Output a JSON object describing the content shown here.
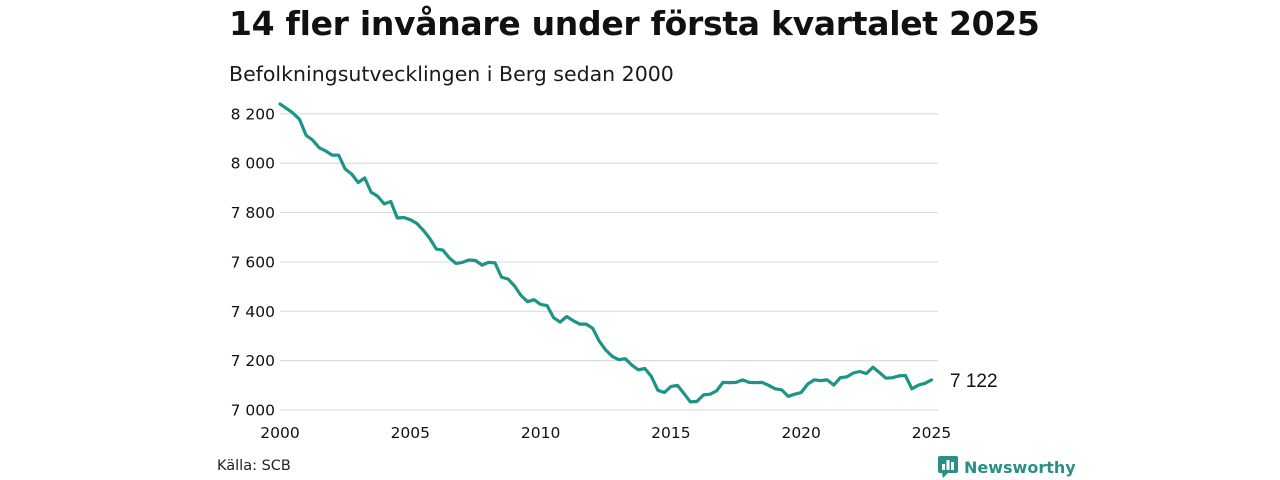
{
  "header": {
    "title": "14 fler invånare under första kvartalet 2025",
    "subtitle": "Befolkningsutvecklingen i Berg sedan 2000"
  },
  "footer": {
    "source": "Källa: SCB",
    "brand": "Newsworthy",
    "brand_icon": "newsworthy-logo-icon"
  },
  "colors": {
    "line": "#1c9486",
    "grid": "#dddddd",
    "brand": "#2a8f86"
  },
  "chart_data": {
    "type": "line",
    "title": "14 fler invånare under första kvartalet 2025",
    "subtitle": "Befolkningsutvecklingen i Berg sedan 2000",
    "xlabel": "",
    "ylabel": "",
    "x_ticks": [
      2000,
      2005,
      2010,
      2015,
      2020,
      2025
    ],
    "x_tick_labels": [
      "2000",
      "2005",
      "2010",
      "2015",
      "2020",
      "2025"
    ],
    "y_ticks": [
      7000,
      7200,
      7400,
      7600,
      7800,
      8000,
      8200
    ],
    "y_tick_labels": [
      "7 000",
      "7 200",
      "7 400",
      "7 600",
      "7 800",
      "8 000",
      "8 200"
    ],
    "xlim": [
      2000,
      2025.25
    ],
    "ylim": [
      7000,
      8240
    ],
    "grid": "horizontal",
    "end_label": "7 122",
    "series": [
      {
        "frequency": "quarterly",
        "start": 2000.0,
        "step": 0.25,
        "values": [
          8240,
          8222,
          8203,
          8178,
          8113,
          8094,
          8063,
          8050,
          8033,
          8033,
          7977,
          7956,
          7922,
          7940,
          7882,
          7866,
          7835,
          7845,
          7778,
          7780,
          7771,
          7756,
          7728,
          7695,
          7652,
          7648,
          7616,
          7594,
          7598,
          7608,
          7606,
          7587,
          7598,
          7596,
          7538,
          7531,
          7503,
          7464,
          7439,
          7447,
          7428,
          7423,
          7374,
          7356,
          7379,
          7362,
          7348,
          7348,
          7331,
          7279,
          7243,
          7217,
          7204,
          7208,
          7182,
          7163,
          7168,
          7136,
          7080,
          7071,
          7095,
          7100,
          7067,
          7033,
          7035,
          7061,
          7064,
          7077,
          7112,
          7111,
          7112,
          7122,
          7112,
          7111,
          7112,
          7100,
          7086,
          7082,
          7055,
          7064,
          7071,
          7105,
          7122,
          7119,
          7122,
          7101,
          7131,
          7134,
          7150,
          7156,
          7148,
          7173,
          7152,
          7129,
          7131,
          7138,
          7140,
          7086,
          7101,
          7108,
          7122
        ]
      }
    ]
  }
}
